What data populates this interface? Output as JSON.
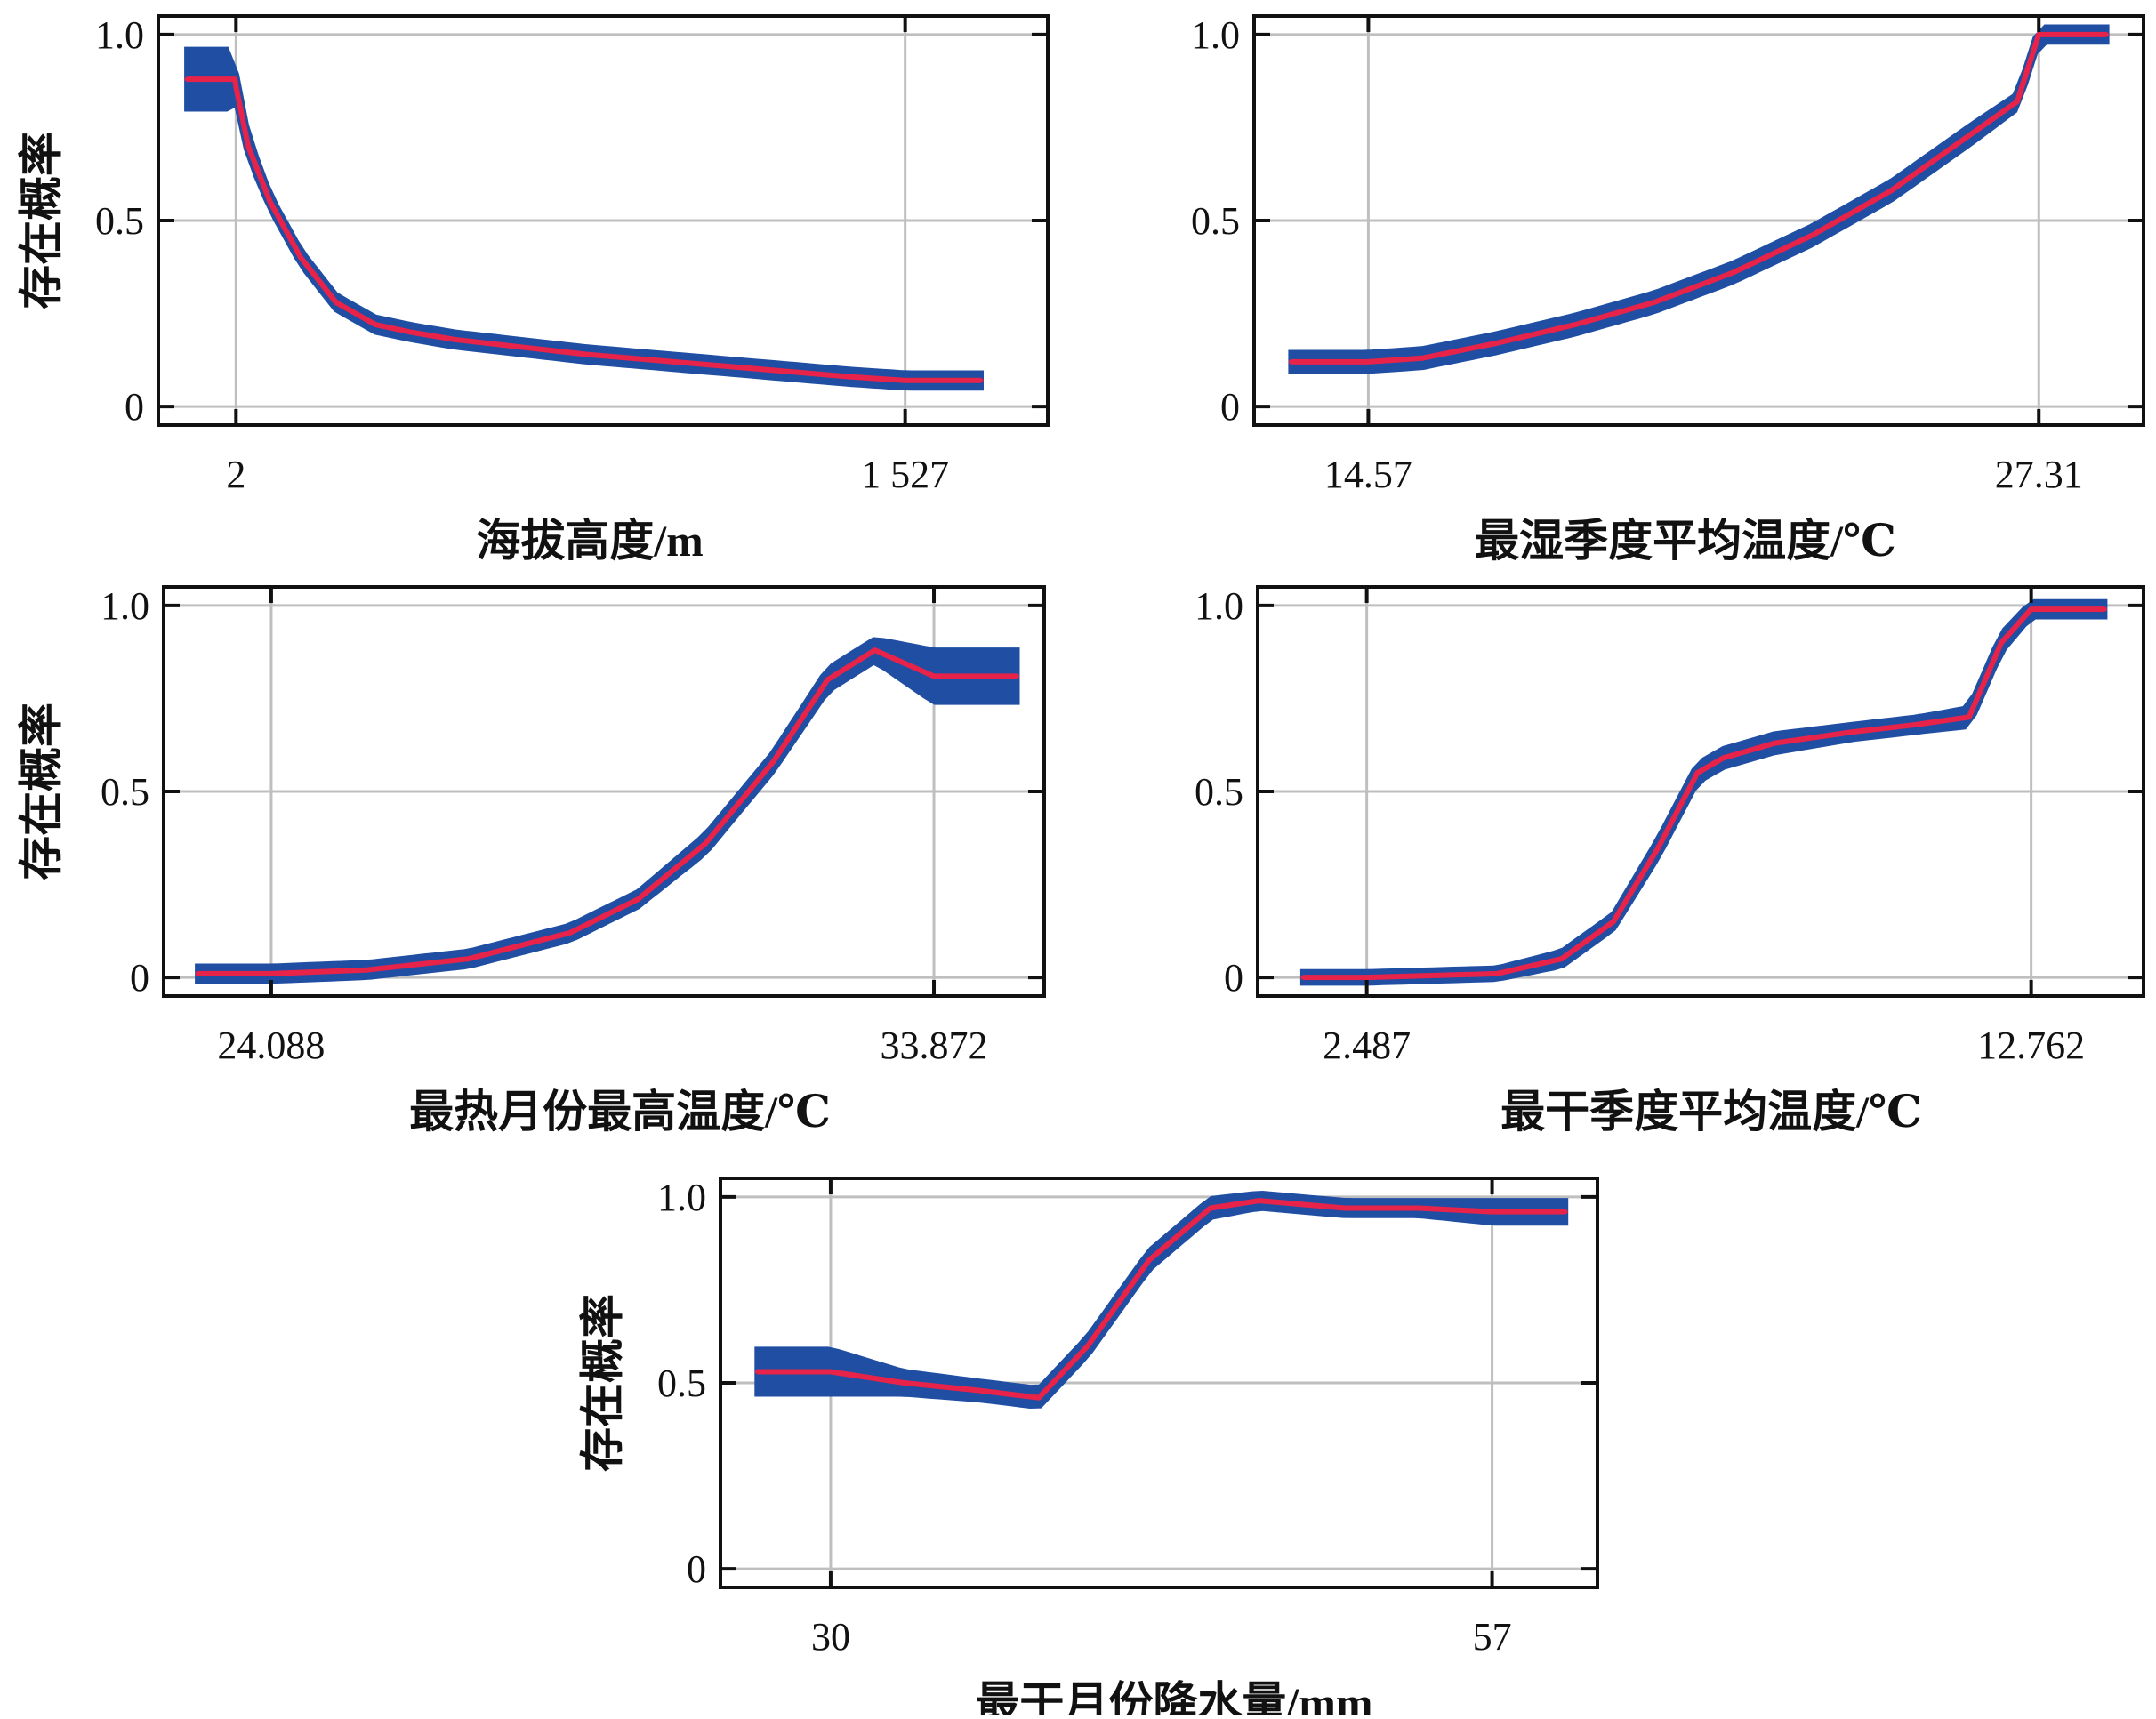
{
  "colors": {
    "band": "#1f4ea3",
    "line": "#e8234a",
    "grid": "#bfbfbf",
    "frame": "#111111"
  },
  "chart_data": [
    {
      "type": "line",
      "xlabel": "海拔高度/m",
      "ylabel": "存在概率",
      "xticks": [
        "2",
        "1 527"
      ],
      "xtick_values": [
        2,
        1527
      ],
      "yticks": [
        "0",
        "0.5",
        "1.0"
      ],
      "ytick_values": [
        0,
        0.5,
        1.0
      ],
      "xlim": [
        -175,
        1852
      ],
      "ylim": [
        -0.05,
        1.05
      ],
      "grid": true,
      "x": [
        -110,
        0,
        2,
        30,
        80,
        150,
        230,
        320,
        400,
        500,
        650,
        800,
        1000,
        1200,
        1400,
        1527,
        1700
      ],
      "y": [
        0.88,
        0.88,
        0.86,
        0.7,
        0.55,
        0.4,
        0.28,
        0.22,
        0.2,
        0.18,
        0.16,
        0.14,
        0.12,
        0.1,
        0.08,
        0.07,
        0.07
      ],
      "band": [
        0.08,
        0.08,
        0.04,
        0.03,
        0.02,
        0.02,
        0.02,
        0.02,
        0.02,
        0.02,
        0.02,
        0.02,
        0.02,
        0.02,
        0.02,
        0.02,
        0.02
      ]
    },
    {
      "type": "line",
      "xlabel": "最湿季度平均温度/℃",
      "ylabel": "",
      "xticks": [
        "14.57",
        "27.31"
      ],
      "xtick_values": [
        14.57,
        27.31
      ],
      "yticks": [
        "0",
        "0.5",
        "1.0"
      ],
      "ytick_values": [
        0,
        0.5,
        1.0
      ],
      "xlim": [
        12.4,
        29.3
      ],
      "ylim": [
        -0.05,
        1.05
      ],
      "grid": true,
      "x": [
        13.1,
        14.57,
        15.6,
        17,
        18.5,
        20,
        21.5,
        23,
        24.5,
        26,
        26.9,
        27.31,
        28.6
      ],
      "y": [
        0.12,
        0.12,
        0.13,
        0.17,
        0.22,
        0.28,
        0.36,
        0.46,
        0.58,
        0.73,
        0.82,
        1.0,
        1.0
      ],
      "band": [
        0.025,
        0.025,
        0.025,
        0.025,
        0.025,
        0.025,
        0.025,
        0.025,
        0.025,
        0.025,
        0.02,
        0.02,
        0.02
      ]
    },
    {
      "type": "line",
      "xlabel": "最热月份最高温度/℃",
      "ylabel": "存在概率",
      "xticks": [
        "24.088",
        "33.872"
      ],
      "xtick_values": [
        24.088,
        33.872
      ],
      "yticks": [
        "0",
        "0.5",
        "1.0"
      ],
      "ytick_values": [
        0,
        0.5,
        1.0
      ],
      "xlim": [
        22.5,
        35.5
      ],
      "ylim": [
        -0.05,
        1.05
      ],
      "grid": true,
      "x": [
        23.0,
        24.088,
        25.5,
        27,
        28.5,
        29.5,
        30.5,
        31.5,
        32.3,
        33.0,
        33.872,
        35.1
      ],
      "y": [
        0.01,
        0.01,
        0.02,
        0.05,
        0.12,
        0.21,
        0.36,
        0.58,
        0.8,
        0.88,
        0.81,
        0.81
      ],
      "band": [
        0.02,
        0.02,
        0.02,
        0.02,
        0.02,
        0.02,
        0.025,
        0.025,
        0.03,
        0.03,
        0.07,
        0.07
      ]
    },
    {
      "type": "line",
      "xlabel": "最干季度平均温度/℃",
      "ylabel": "",
      "xticks": [
        "2.487",
        "12.762"
      ],
      "xtick_values": [
        2.487,
        12.762
      ],
      "yticks": [
        "0",
        "0.5",
        "1.0"
      ],
      "ytick_values": [
        0,
        0.5,
        1.0
      ],
      "xlim": [
        0.8,
        14.5
      ],
      "ylim": [
        -0.05,
        1.05
      ],
      "grid": true,
      "x": [
        1.5,
        2.487,
        4.5,
        5.5,
        6.3,
        7.0,
        7.6,
        8.0,
        8.8,
        10.0,
        11.0,
        11.8,
        12.3,
        12.762,
        13.9
      ],
      "y": [
        0.0,
        0.0,
        0.01,
        0.05,
        0.15,
        0.35,
        0.55,
        0.59,
        0.63,
        0.66,
        0.68,
        0.7,
        0.9,
        0.99,
        0.99
      ],
      "band": [
        0.015,
        0.015,
        0.015,
        0.02,
        0.02,
        0.025,
        0.025,
        0.025,
        0.025,
        0.02,
        0.02,
        0.025,
        0.025,
        0.02,
        0.02
      ]
    },
    {
      "type": "line",
      "xlabel": "最干月份降水量/mm",
      "ylabel": "存在概率",
      "xticks": [
        "30",
        "57"
      ],
      "xtick_values": [
        30,
        57
      ],
      "yticks": [
        "0",
        "0.5",
        "1.0"
      ],
      "ytick_values": [
        0,
        0.5,
        1.0
      ],
      "xlim": [
        25.5,
        61.3
      ],
      "ylim": [
        -0.05,
        1.05
      ],
      "grid": true,
      "x": [
        27.0,
        30,
        33,
        36,
        38.5,
        40.5,
        43,
        45.5,
        47.5,
        51,
        54,
        57,
        60.0
      ],
      "y": [
        0.53,
        0.53,
        0.5,
        0.48,
        0.46,
        0.6,
        0.83,
        0.97,
        0.99,
        0.97,
        0.97,
        0.96,
        0.96
      ],
      "band": [
        0.06,
        0.06,
        0.03,
        0.025,
        0.025,
        0.025,
        0.025,
        0.025,
        0.02,
        0.02,
        0.02,
        0.03,
        0.03
      ]
    }
  ]
}
